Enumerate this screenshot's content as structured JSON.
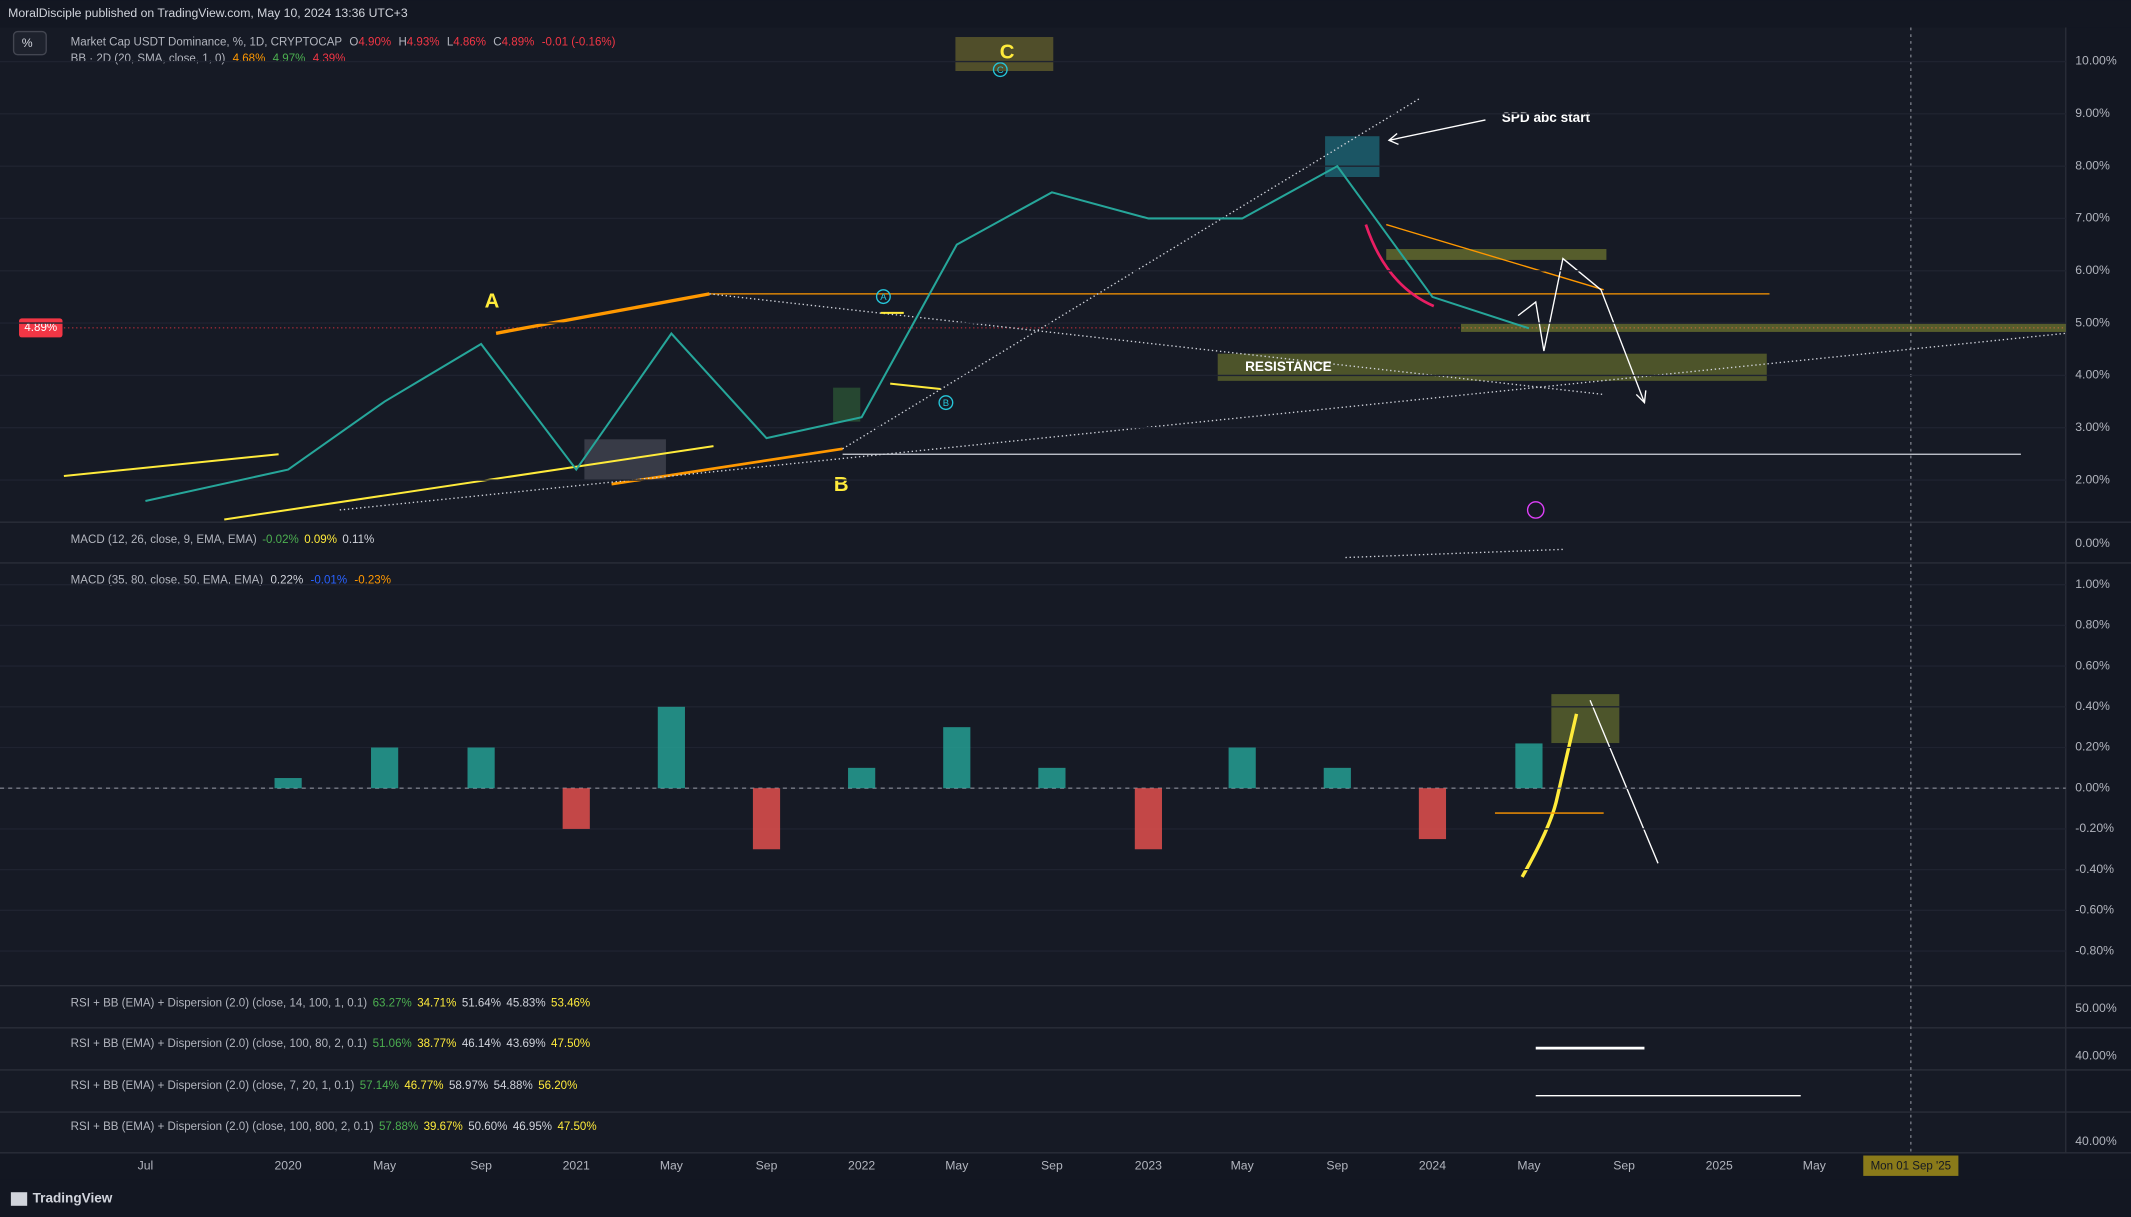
{
  "header": {
    "publisher": "MoralDisciple published on TradingView.com, May 10, 2024 13:36 UTC+3",
    "scale_button": "%"
  },
  "footer": {
    "brand": "TradingView",
    "crosshair_date": "Mon 01 Sep '25"
  },
  "legend": {
    "symbol": "Market Cap USDT Dominance, %, 1D, CRYPTOCAP",
    "ohlc": [
      {
        "key": "O",
        "value": "4.90%"
      },
      {
        "key": "H",
        "value": "4.93%"
      },
      {
        "key": "L",
        "value": "4.86%"
      },
      {
        "key": "C",
        "value": "4.89%"
      }
    ],
    "change": "-0.01 (-0.16%)",
    "bb": {
      "name": "BB · 2D (20, SMA, close, 1, 0)",
      "values": [
        "4.68%",
        "4.97%",
        "4.39%"
      ]
    }
  },
  "annotations": {
    "wave": [
      "A",
      "B",
      "C"
    ],
    "minor": [
      "A",
      "B",
      "C"
    ],
    "spd": "SPD abc start",
    "resistance": "RESISTANCE"
  },
  "last_price": {
    "value": 4.89,
    "label": "4.89%"
  },
  "chart_data": [
    {
      "type": "line",
      "color": "#26a69a",
      "categories": [
        "Jul",
        "2020",
        "May",
        "Sep",
        "2021",
        "May",
        "Sep",
        "2022",
        "May",
        "Sep",
        "2023",
        "May",
        "Sep",
        "2024",
        "May",
        "Sep",
        "2025",
        "May"
      ],
      "values": [
        1.6,
        2.2,
        3.5,
        4.6,
        2.2,
        4.8,
        2.8,
        3.2,
        6.5,
        7.5,
        7.0,
        7.0,
        8.0,
        5.5,
        4.9,
        null,
        null,
        null
      ],
      "ylim": [
        1.22,
        10.65
      ],
      "yticks": [
        {
          "value": 2,
          "label": "2.00%"
        },
        {
          "value": 3,
          "label": "3.00%"
        },
        {
          "value": 4,
          "label": "4.00%"
        },
        {
          "value": 5,
          "label": "5.00%"
        },
        {
          "value": 6,
          "label": "6.00%"
        },
        {
          "value": 7,
          "label": "7.00%"
        },
        {
          "value": 8,
          "label": "8.00%"
        },
        {
          "value": 9,
          "label": "9.00%"
        },
        {
          "value": 10,
          "label": "10.00%"
        }
      ],
      "grid": true
    },
    {
      "type": "bar",
      "title": "MACD (35, 80, close, 50, EMA, EMA)",
      "legend_values": [
        "0.22%",
        "-0.01%",
        "-0.23%"
      ],
      "pos_color": "#26a69a",
      "neg_color": "#ef5350",
      "values": [
        0,
        0.05,
        0.2,
        0.2,
        -0.2,
        0.4,
        -0.3,
        0.1,
        0.3,
        0.1,
        -0.3,
        0.2,
        0.1,
        -0.25,
        0.22,
        null,
        null,
        null
      ],
      "ylim": [
        -0.95,
        1.1
      ],
      "yticks": [
        {
          "value": 1,
          "label": "1.00%"
        },
        {
          "value": 0.8,
          "label": "0.80%"
        },
        {
          "value": 0.6,
          "label": "0.60%"
        },
        {
          "value": 0.4,
          "label": "0.40%"
        },
        {
          "value": 0.2,
          "label": "0.20%"
        },
        {
          "value": 0,
          "label": "0.00%"
        },
        {
          "value": -0.2,
          "label": "-0.20%"
        },
        {
          "value": -0.4,
          "label": "-0.40%"
        },
        {
          "value": -0.6,
          "label": "-0.60%"
        },
        {
          "value": -0.8,
          "label": "-0.80%"
        }
      ],
      "grid": true
    }
  ],
  "panes": [
    {
      "name": "MACD (12, 26, close, 9, EMA, EMA)",
      "values": [
        "-0.02%",
        "0.09%",
        "0.11%"
      ],
      "axis": "0.00%"
    },
    {
      "name": "RSI + BB (EMA) + Dispersion (2.0) (close, 14, 100, 1, 0.1)",
      "values": [
        "63.27%",
        "34.71%",
        "51.64%",
        "45.83%",
        "53.46%"
      ],
      "axis": "50.00%"
    },
    {
      "name": "RSI + BB (EMA) + Dispersion (2.0) (close, 100, 80, 2, 0.1)",
      "values": [
        "51.06%",
        "38.77%",
        "46.14%",
        "43.69%",
        "47.50%"
      ],
      "axis": "40.00%"
    },
    {
      "name": "RSI + BB (EMA) + Dispersion (2.0) (close, 7, 20, 1, 0.1)",
      "values": [
        "57.14%",
        "46.77%",
        "58.97%",
        "54.88%",
        "56.20%"
      ],
      "axis": ""
    },
    {
      "name": "RSI + BB (EMA) + Dispersion (2.0) (close, 100, 800, 2, 0.1)",
      "values": [
        "57.88%",
        "39.67%",
        "50.60%",
        "46.95%",
        "47.50%"
      ],
      "axis": "40.00%"
    }
  ]
}
